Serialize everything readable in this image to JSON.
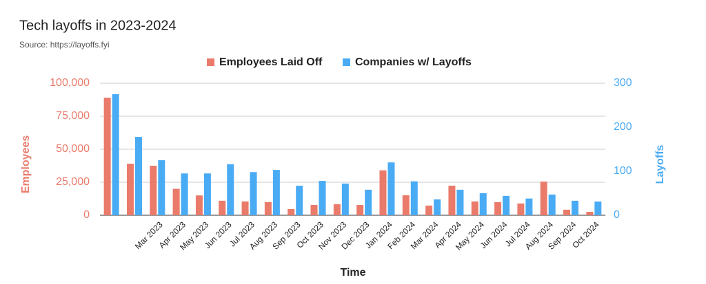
{
  "chart_data": {
    "type": "bar",
    "title": "Tech layoffs in 2023-2024",
    "subtitle": "Source: https://layoffs.fyi",
    "x_label": "Time",
    "y_label": "Employees",
    "y2_label": "Layoffs",
    "categories": [
      null,
      null,
      "Mar 2023",
      "Apr 2023",
      "May 2023",
      "Jun 2023",
      "Jul 2023",
      "Aug 2023",
      "Sep 2023",
      "Oct 2023",
      "Nov 2023",
      "Dec 2023",
      "Jan 2024",
      "Feb 2024",
      "Mar 2024",
      "Apr 2024",
      "May 2024",
      "Jun 2024",
      "Jul 2024",
      "Aug 2024",
      "Sep 2024",
      "Oct 2024"
    ],
    "series": [
      {
        "name": "Employees Laid Off",
        "color": "#ea7b6b",
        "values": [
          89000,
          39000,
          37500,
          20000,
          15000,
          11000,
          10400,
          10000,
          4700,
          7800,
          8300,
          7800,
          34000,
          15100,
          7300,
          22400,
          10400,
          9900,
          8900,
          25500,
          4200,
          2600
        ]
      },
      {
        "name": "Companies w/ Layoffs",
        "color": "#4aabf5",
        "axis": "y2",
        "values": [
          275,
          178,
          125,
          95,
          95,
          116,
          98,
          103,
          67,
          78,
          72,
          58,
          120,
          77,
          36,
          58,
          50,
          44,
          38,
          47,
          33,
          31
        ]
      }
    ],
    "ylim": [
      0,
      100000
    ],
    "yticks": [
      0,
      {
        "value": 25000,
        "label": "25,000"
      },
      {
        "value": 50000,
        "label": "50,000"
      },
      {
        "value": 75000,
        "label": "75,000"
      },
      {
        "value": 100000,
        "label": "100,000"
      }
    ],
    "y2lim": [
      0,
      300
    ],
    "y2ticks": [
      0,
      100,
      200,
      300
    ],
    "grid": true,
    "legend": "top"
  }
}
